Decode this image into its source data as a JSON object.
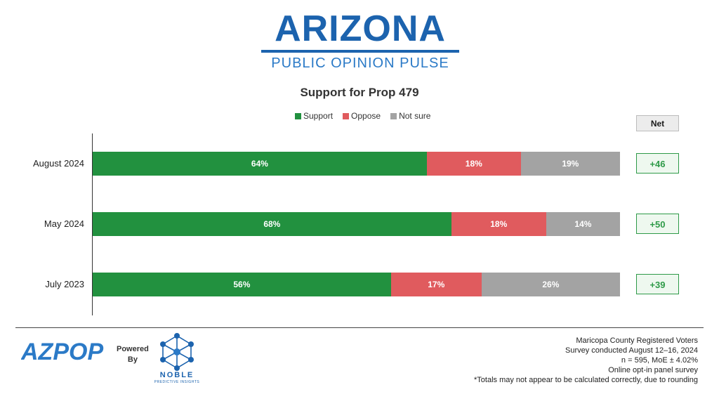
{
  "brand": {
    "title": "ARIZONA",
    "subtitle": "PUBLIC OPINION PULSE",
    "color": "#1c63ae"
  },
  "chart_data": {
    "type": "bar",
    "orientation": "horizontal-stacked",
    "title": "Support for Prop 479",
    "categories": [
      "August 2024",
      "May 2024",
      "July 2023"
    ],
    "series": [
      {
        "name": "Support",
        "color": "#22913f",
        "values": [
          64,
          68,
          56
        ]
      },
      {
        "name": "Oppose",
        "color": "#e05b5e",
        "values": [
          18,
          18,
          17
        ]
      },
      {
        "name": "Not sure",
        "color": "#a3a3a3",
        "values": [
          19,
          14,
          26
        ]
      }
    ],
    "net_header": "Net",
    "net": [
      "+46",
      "+50",
      "+39"
    ],
    "legend_position": "top",
    "grid": false
  },
  "footer": {
    "logo_text": "AZPOP",
    "powered_line1": "Powered",
    "powered_line2": "By",
    "noble_name": "NOBLE",
    "noble_tagline": "PREDICTIVE INSIGHTS",
    "notes": [
      "Maricopa County Registered Voters",
      "Survey conducted August 12–16, 2024",
      "n = 595, MoE ± 4.02%",
      "Online opt-in panel survey",
      "*Totals may not appear to be calculated correctly, due to rounding"
    ]
  }
}
